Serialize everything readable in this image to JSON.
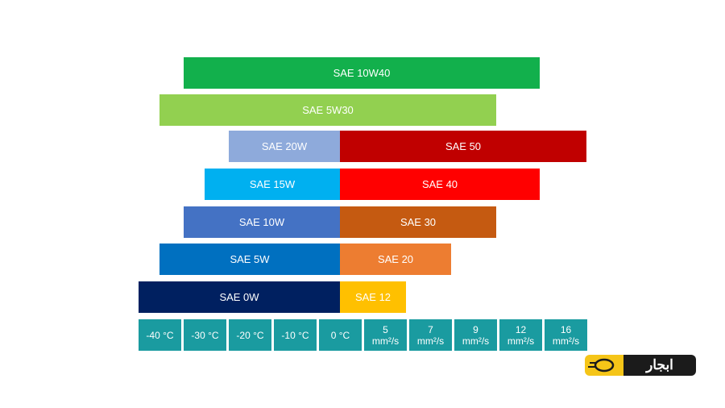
{
  "rows": [
    [
      {
        "label": "SAE 10W40",
        "color": "#12b04c"
      }
    ],
    [
      {
        "label": "SAE 5W30",
        "color": "#92d050"
      }
    ],
    [
      {
        "label": "SAE 20W",
        "color": "#8eaadb"
      },
      {
        "label": "SAE 50",
        "color": "#c00000"
      }
    ],
    [
      {
        "label": "SAE 15W",
        "color": "#00b0f0"
      },
      {
        "label": "SAE 40",
        "color": "#ff0000"
      }
    ],
    [
      {
        "label": "SAE 10W",
        "color": "#4472c4"
      },
      {
        "label": "SAE 30",
        "color": "#c55a11"
      }
    ],
    [
      {
        "label": "SAE 5W",
        "color": "#0070c0"
      },
      {
        "label": "SAE 20",
        "color": "#ed7d31"
      }
    ],
    [
      {
        "label": "SAE 0W",
        "color": "#002060"
      },
      {
        "label": "SAE 12",
        "color": "#ffc000"
      }
    ]
  ],
  "scale": [
    {
      "text": "-40 °C"
    },
    {
      "text": "-30 °C"
    },
    {
      "text": "-20 °C"
    },
    {
      "text": "-10 °C"
    },
    {
      "text": "0 °C"
    },
    {
      "text": "5",
      "unit": "mm²/s"
    },
    {
      "text": "7",
      "unit": "mm²/s"
    },
    {
      "text": "9",
      "unit": "mm²/s"
    },
    {
      "text": "12",
      "unit": "mm²/s"
    },
    {
      "text": "16",
      "unit": "mm²/s"
    }
  ],
  "logo": {
    "text": "ابجار"
  }
}
